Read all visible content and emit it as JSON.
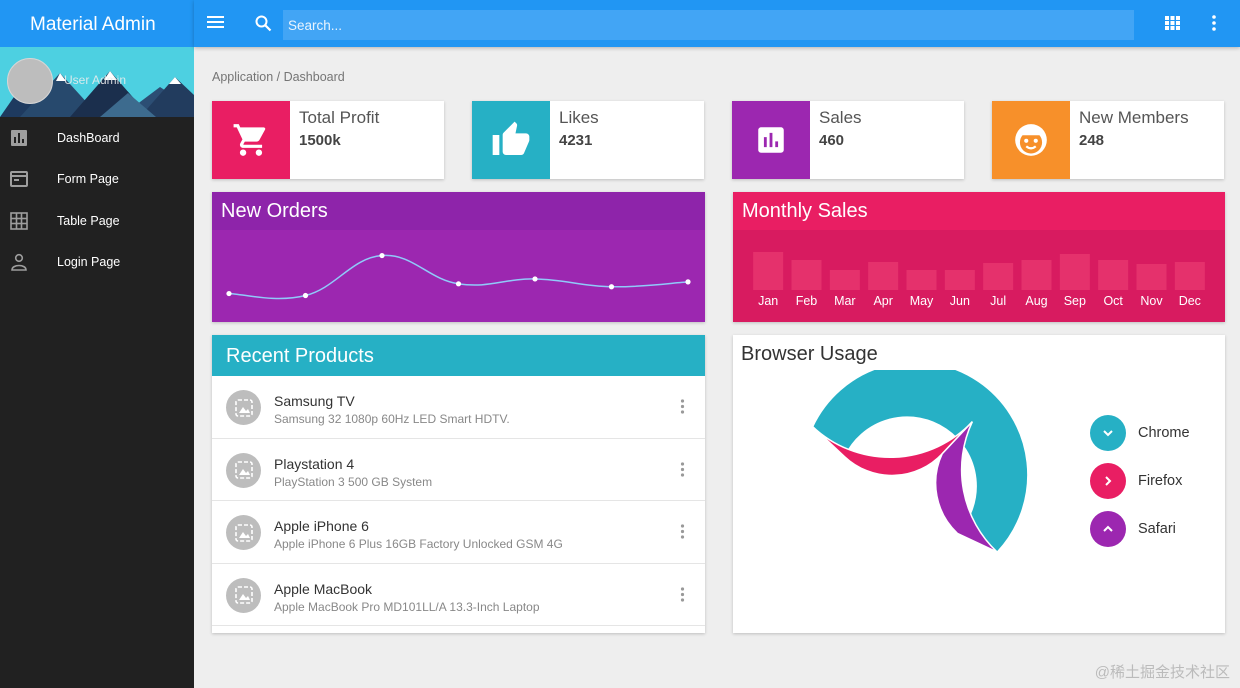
{
  "sidebar": {
    "title": "Material Admin",
    "user_name": "User Admin",
    "items": [
      {
        "label": "DashBoard",
        "icon": "bar-chart-icon"
      },
      {
        "label": "Form Page",
        "icon": "web-form-icon"
      },
      {
        "label": "Table Page",
        "icon": "grid-table-icon"
      },
      {
        "label": "Login Page",
        "icon": "person-icon"
      }
    ]
  },
  "topbar": {
    "search_placeholder": "Search..."
  },
  "breadcrumb": "Application / Dashboard",
  "cards": [
    {
      "title": "Total Profit",
      "value": "1500k",
      "color": "#e91e63",
      "icon": "shopping-cart-icon"
    },
    {
      "title": "Likes",
      "value": "4231",
      "color": "#26b0c5",
      "icon": "thumb-up-icon"
    },
    {
      "title": "Sales",
      "value": "460",
      "color": "#9c27b0",
      "icon": "assessment-icon"
    },
    {
      "title": "New Members",
      "value": "248",
      "color": "#f7902a",
      "icon": "face-icon"
    }
  ],
  "new_orders": {
    "title": "New Orders"
  },
  "monthly_sales": {
    "title": "Monthly Sales",
    "months": [
      "Jan",
      "Feb",
      "Mar",
      "Apr",
      "May",
      "Jun",
      "Jul",
      "Aug",
      "Sep",
      "Oct",
      "Nov",
      "Dec"
    ]
  },
  "recent_products": {
    "title": "Recent Products",
    "items": [
      {
        "name": "Samsung TV",
        "desc": "Samsung 32 1080p 60Hz LED Smart HDTV."
      },
      {
        "name": "Playstation 4",
        "desc": "PlayStation 3 500 GB System"
      },
      {
        "name": "Apple iPhone 6",
        "desc": "Apple iPhone 6 Plus 16GB Factory Unlocked GSM 4G"
      },
      {
        "name": "Apple MacBook",
        "desc": "Apple MacBook Pro MD101LL/A 13.3-Inch Laptop"
      }
    ]
  },
  "browser_usage": {
    "title": "Browser Usage",
    "legend": [
      {
        "label": "Chrome",
        "color": "#26b0c5",
        "icon": "chevron-down-icon"
      },
      {
        "label": "Firefox",
        "color": "#e91e63",
        "icon": "chevron-right-icon"
      },
      {
        "label": "Safari",
        "color": "#9c27b0",
        "icon": "chevron-up-icon"
      }
    ]
  },
  "watermark": "@稀土掘金技术社区",
  "chart_data": [
    {
      "type": "line",
      "x": [
        1,
        2,
        3,
        4,
        5,
        6,
        7
      ],
      "values": [
        23,
        21,
        62,
        33,
        38,
        30,
        35
      ],
      "ylim": [
        0,
        80
      ]
    },
    {
      "type": "bar",
      "categories": [
        "Jan",
        "Feb",
        "Mar",
        "Apr",
        "May",
        "Jun",
        "Jul",
        "Aug",
        "Sep",
        "Oct",
        "Nov",
        "Dec"
      ],
      "values": [
        38,
        30,
        20,
        28,
        20,
        20,
        27,
        30,
        36,
        30,
        26,
        28
      ],
      "ylim": [
        0,
        40
      ]
    },
    {
      "type": "pie",
      "categories": [
        "Chrome",
        "Firefox",
        "Safari"
      ],
      "values": [
        55,
        25,
        20
      ],
      "colors": [
        "#26b0c5",
        "#e91e63",
        "#9c27b0"
      ]
    }
  ]
}
